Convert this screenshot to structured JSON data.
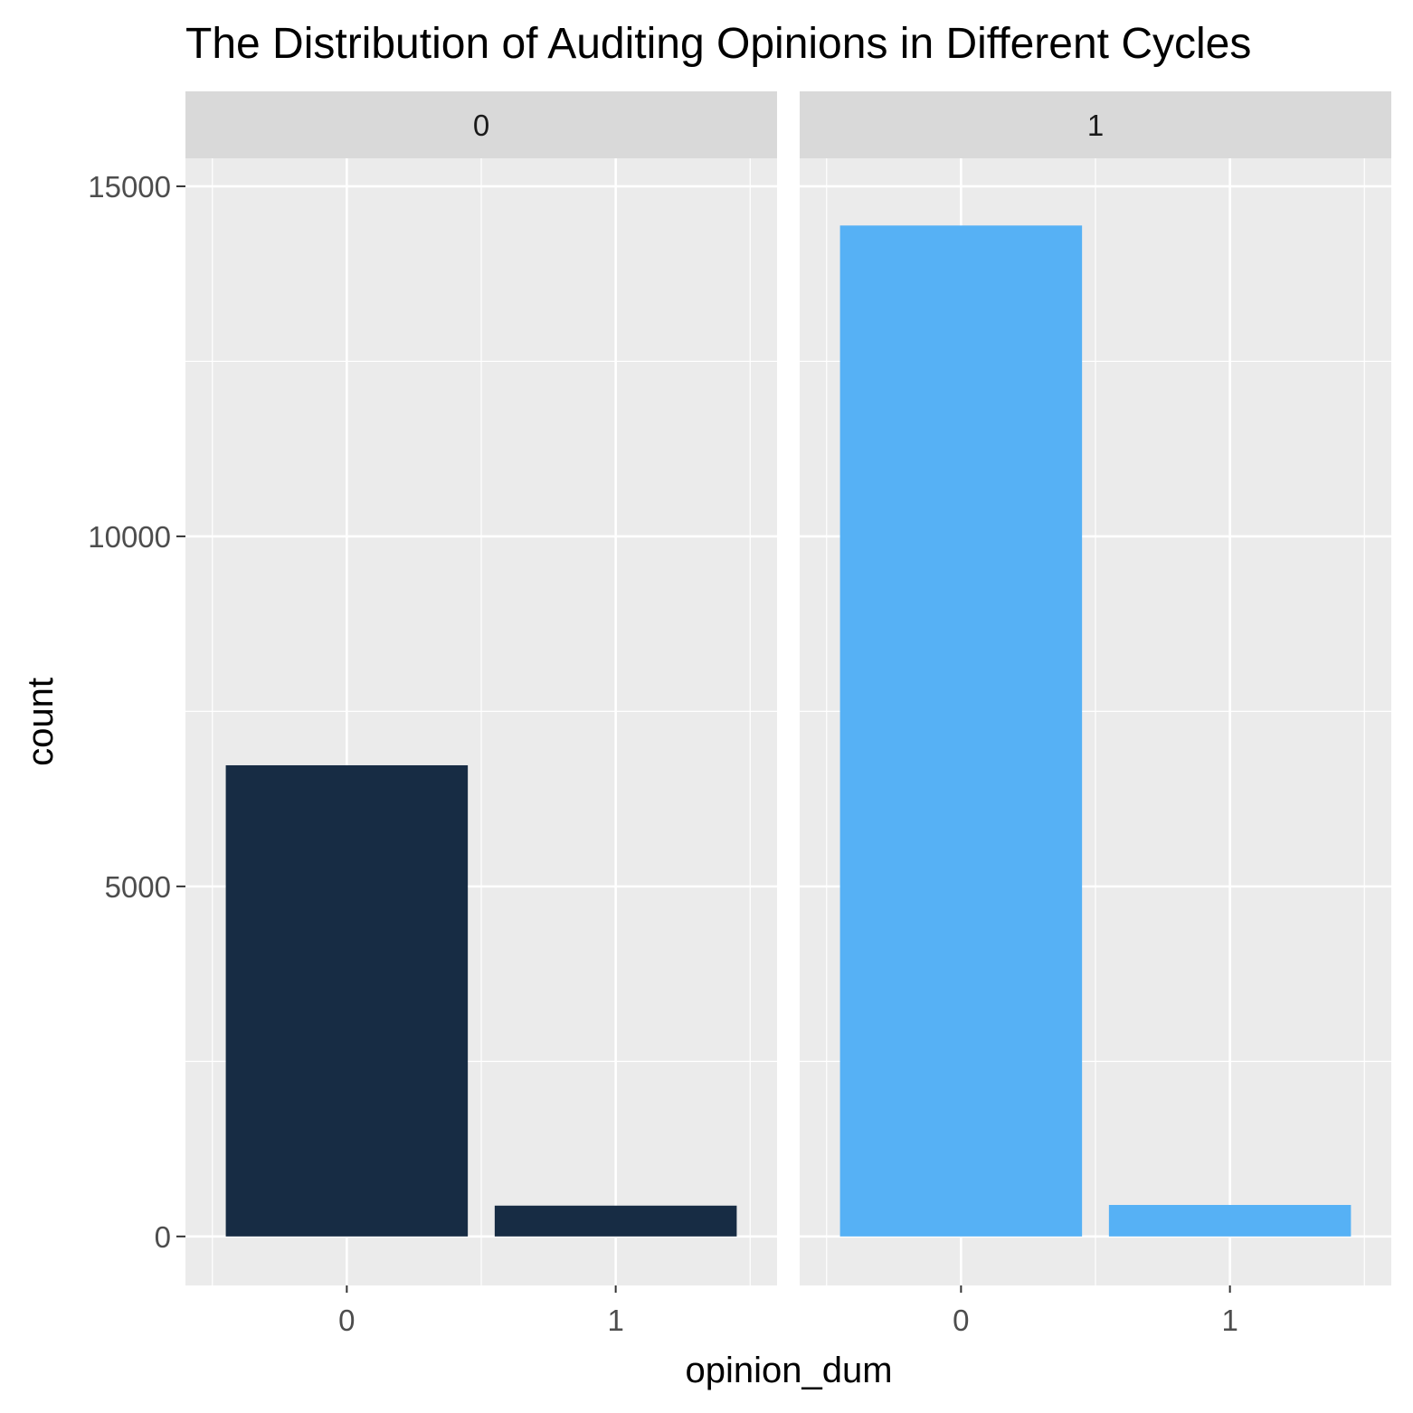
{
  "chart_data": {
    "type": "bar",
    "title": "The Distribution of Auditing Opinions in Different Cycles",
    "xlabel": "opinion_dum",
    "ylabel": "count",
    "ylim": [
      -700,
      15400
    ],
    "yticks": [
      0,
      5000,
      10000,
      15000
    ],
    "y_tick_labels": [
      "0",
      "5000",
      "10000",
      "15000"
    ],
    "categories": [
      "0",
      "1"
    ],
    "grid": true,
    "facets": [
      {
        "label": "0",
        "color": "#172c44",
        "values": [
          6730,
          440
        ]
      },
      {
        "label": "1",
        "color": "#56b1f5",
        "values": [
          14440,
          450
        ]
      }
    ]
  },
  "theme": {
    "panel_bg": "#ebebeb",
    "strip_bg": "#d9d9d9",
    "grid_color": "#ffffff",
    "tick_color": "#333333"
  }
}
